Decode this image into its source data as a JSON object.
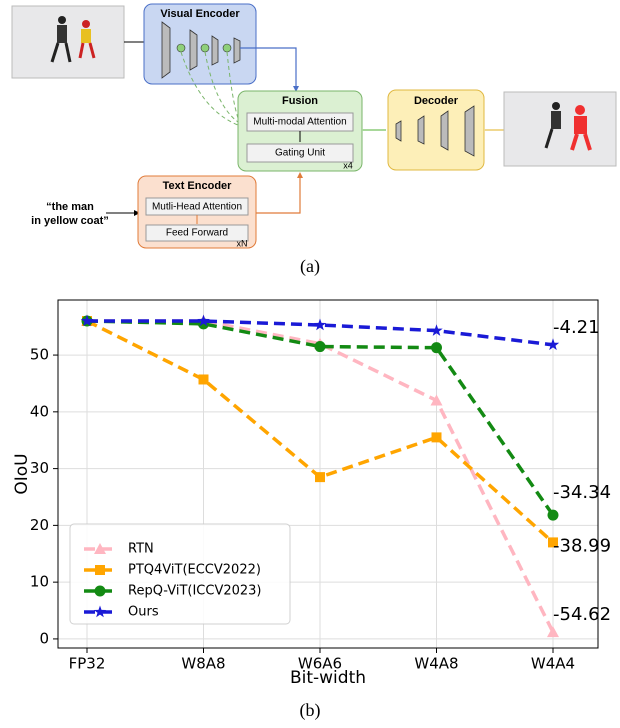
{
  "diagram": {
    "visual_encoder": "Visual Encoder",
    "fusion": {
      "title": "Fusion",
      "attention": "Multi-modal Attention",
      "gating": "Gating Unit",
      "repeat": "x4"
    },
    "decoder": "Decoder",
    "text_encoder": {
      "title": "Text Encoder",
      "attention": "Mutli-Head Attention",
      "ffn": "Feed Forward",
      "repeat": "xN"
    },
    "query": [
      "“the man",
      "in yellow coat”"
    ]
  },
  "captions": [
    "(a)",
    "(b)"
  ],
  "chart_data": {
    "type": "line",
    "xlabel": "Bit-width",
    "ylabel": "OIoU",
    "categories": [
      "FP32",
      "W8A8",
      "W6A6",
      "W4A8",
      "W4A4"
    ],
    "series": [
      {
        "name": "RTN",
        "color": "#ffb6c1",
        "marker": "triangle",
        "values": [
          56,
          56,
          52,
          42,
          1.2
        ]
      },
      {
        "name": "PTQ4ViT(ECCV2022)",
        "color": "#ffa500",
        "marker": "square",
        "values": [
          56,
          45.7,
          28.5,
          35.5,
          17
        ]
      },
      {
        "name": "RepQ-ViT(ICCV2023)",
        "color": "#138a13",
        "marker": "circle",
        "values": [
          56,
          55.5,
          51.5,
          51.3,
          21.8
        ]
      },
      {
        "name": "Ours",
        "color": "#1a1ad6",
        "marker": "star",
        "values": [
          56,
          56,
          55.3,
          54.3,
          51.8
        ]
      }
    ],
    "annotations": [
      "-4.21",
      "-34.34",
      "-38.99",
      "-54.62"
    ],
    "ylim": [
      -1.6,
      59.7
    ],
    "yticks": [
      0,
      10,
      20,
      30,
      40,
      50
    ],
    "grid": true,
    "legend": "lower left"
  }
}
